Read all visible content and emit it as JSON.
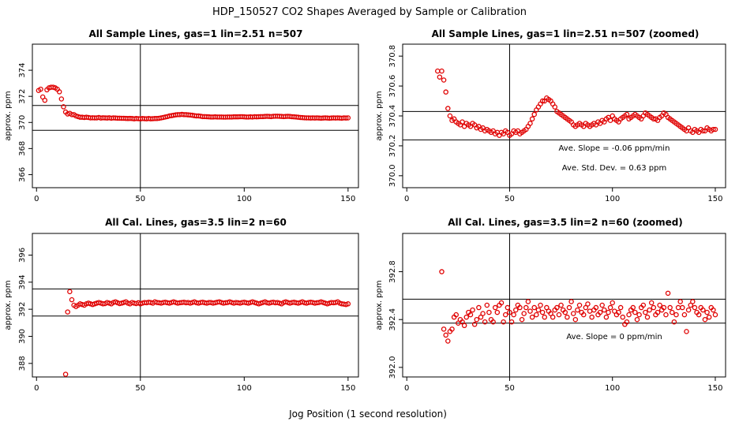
{
  "figure": {
    "title": "HDP_150527  CO2 Shapes Averaged by Sample or Calibration",
    "xlabel": "Jog Position (1 second resolution)"
  },
  "chart_data": [
    {
      "type": "scatter",
      "title": "All Sample Lines, gas=1 lin=2.51 n=507",
      "ylabel": "approx. ppm",
      "xlim": [
        -2,
        155
      ],
      "ylim": [
        365,
        376
      ],
      "xticks": [
        "0",
        "50",
        "100",
        "150"
      ],
      "yticks": [
        "366",
        "368",
        "370",
        "372",
        "374"
      ],
      "hlines": [
        371.3,
        369.4
      ],
      "vline": 50,
      "annotations": [],
      "x": [
        1,
        2,
        3,
        4,
        5,
        6,
        7,
        8,
        9,
        10,
        11,
        12,
        13,
        14,
        15,
        16,
        17,
        18,
        19,
        20,
        21,
        22,
        23,
        24,
        25,
        26,
        27,
        28,
        29,
        30,
        31,
        32,
        33,
        34,
        35,
        36,
        37,
        38,
        39,
        40,
        41,
        42,
        43,
        44,
        45,
        46,
        47,
        48,
        49,
        50,
        51,
        52,
        53,
        54,
        55,
        56,
        57,
        58,
        59,
        60,
        61,
        62,
        63,
        64,
        65,
        66,
        67,
        68,
        69,
        70,
        71,
        72,
        73,
        74,
        75,
        76,
        77,
        78,
        79,
        80,
        81,
        82,
        83,
        84,
        85,
        86,
        87,
        88,
        89,
        90,
        91,
        92,
        93,
        94,
        95,
        96,
        97,
        98,
        99,
        100,
        101,
        102,
        103,
        104,
        105,
        106,
        107,
        108,
        109,
        110,
        111,
        112,
        113,
        114,
        115,
        116,
        117,
        118,
        119,
        120,
        121,
        122,
        123,
        124,
        125,
        126,
        127,
        128,
        129,
        130,
        131,
        132,
        133,
        134,
        135,
        136,
        137,
        138,
        139,
        140,
        141,
        142,
        143,
        144,
        145,
        146,
        147,
        148,
        149,
        150
      ],
      "y": [
        372.45,
        372.55,
        371.95,
        371.7,
        372.5,
        372.65,
        372.7,
        372.7,
        372.65,
        372.55,
        372.35,
        371.8,
        371.2,
        370.8,
        370.65,
        370.7,
        370.6,
        370.6,
        370.5,
        370.45,
        370.4,
        370.4,
        370.38,
        370.4,
        370.38,
        370.35,
        370.36,
        370.35,
        370.35,
        370.38,
        370.34,
        370.36,
        370.35,
        370.34,
        370.36,
        370.33,
        370.35,
        370.34,
        370.33,
        370.33,
        370.32,
        370.32,
        370.31,
        370.3,
        370.31,
        370.3,
        370.28,
        370.3,
        370.29,
        370.28,
        370.3,
        370.29,
        370.28,
        370.3,
        370.28,
        370.29,
        370.3,
        370.3,
        370.32,
        370.35,
        370.38,
        370.42,
        370.45,
        370.5,
        370.52,
        370.55,
        370.58,
        370.6,
        370.6,
        370.62,
        370.6,
        370.6,
        370.58,
        370.57,
        370.55,
        370.52,
        370.5,
        370.5,
        370.48,
        370.45,
        370.45,
        370.44,
        370.43,
        370.42,
        370.42,
        370.43,
        370.42,
        370.42,
        370.42,
        370.41,
        370.41,
        370.42,
        370.42,
        370.42,
        370.43,
        370.43,
        370.43,
        370.44,
        370.44,
        370.43,
        370.42,
        370.42,
        370.43,
        370.42,
        370.44,
        370.43,
        370.44,
        370.45,
        370.45,
        370.46,
        370.47,
        370.46,
        370.45,
        370.47,
        370.48,
        370.48,
        370.47,
        370.46,
        370.45,
        370.46,
        370.47,
        370.46,
        370.44,
        370.43,
        370.42,
        370.4,
        370.38,
        370.37,
        370.36,
        370.35,
        370.35,
        370.34,
        370.35,
        370.34,
        370.35,
        370.34,
        370.33,
        370.34,
        370.35,
        370.34,
        370.33,
        370.34,
        370.35,
        370.34,
        370.35,
        370.34,
        370.33,
        370.35,
        370.34,
        370.35
      ]
    },
    {
      "type": "scatter",
      "title": "All Sample Lines, gas=1 lin=2.51 n=507 (zoomed)",
      "ylabel": "approx. ppm",
      "xlim": [
        -2,
        155
      ],
      "ylim": [
        369.92,
        370.88
      ],
      "xticks": [
        "0",
        "50",
        "100",
        "150"
      ],
      "yticks": [
        "370.0",
        "370.2",
        "370.4",
        "370.6",
        "370.8"
      ],
      "hlines": [
        370.43,
        370.24
      ],
      "vline": 50,
      "annotations": [
        "Ave. Slope =  -0.06  ppm/min",
        "Ave. Std. Dev. =  0.63  ppm"
      ],
      "x": [
        15,
        16,
        17,
        18,
        19,
        20,
        21,
        22,
        23,
        24,
        25,
        26,
        27,
        28,
        29,
        30,
        31,
        32,
        33,
        34,
        35,
        36,
        37,
        38,
        39,
        40,
        41,
        42,
        43,
        44,
        45,
        46,
        47,
        48,
        49,
        50,
        51,
        52,
        53,
        54,
        55,
        56,
        57,
        58,
        59,
        60,
        61,
        62,
        63,
        64,
        65,
        66,
        67,
        68,
        69,
        70,
        71,
        72,
        73,
        74,
        75,
        76,
        77,
        78,
        79,
        80,
        81,
        82,
        83,
        84,
        85,
        86,
        87,
        88,
        89,
        90,
        91,
        92,
        93,
        94,
        95,
        96,
        97,
        98,
        99,
        100,
        101,
        102,
        103,
        104,
        105,
        106,
        107,
        108,
        109,
        110,
        111,
        112,
        113,
        114,
        115,
        116,
        117,
        118,
        119,
        120,
        121,
        122,
        123,
        124,
        125,
        126,
        127,
        128,
        129,
        130,
        131,
        132,
        133,
        134,
        135,
        136,
        137,
        138,
        139,
        140,
        141,
        142,
        143,
        144,
        145,
        146,
        147,
        148,
        149,
        150
      ],
      "y": [
        370.7,
        370.66,
        370.7,
        370.64,
        370.56,
        370.45,
        370.4,
        370.37,
        370.38,
        370.36,
        370.35,
        370.34,
        370.36,
        370.33,
        370.35,
        370.34,
        370.33,
        370.35,
        370.34,
        370.32,
        370.33,
        370.31,
        370.32,
        370.3,
        370.31,
        370.3,
        370.29,
        370.3,
        370.28,
        370.29,
        370.27,
        370.29,
        370.28,
        370.3,
        370.29,
        370.27,
        370.28,
        370.3,
        370.29,
        370.3,
        370.28,
        370.29,
        370.3,
        370.31,
        370.33,
        370.35,
        370.38,
        370.41,
        370.44,
        370.46,
        370.48,
        370.5,
        370.5,
        370.52,
        370.51,
        370.5,
        370.48,
        370.46,
        370.43,
        370.42,
        370.41,
        370.4,
        370.39,
        370.38,
        370.37,
        370.36,
        370.34,
        370.33,
        370.34,
        370.35,
        370.34,
        370.33,
        370.35,
        370.34,
        370.33,
        370.34,
        370.35,
        370.34,
        370.36,
        370.35,
        370.37,
        370.36,
        370.38,
        370.39,
        370.37,
        370.4,
        370.38,
        370.37,
        370.36,
        370.38,
        370.39,
        370.4,
        370.41,
        370.38,
        370.39,
        370.4,
        370.41,
        370.4,
        370.39,
        370.38,
        370.4,
        370.42,
        370.41,
        370.4,
        370.39,
        370.38,
        370.38,
        370.37,
        370.39,
        370.4,
        370.42,
        370.41,
        370.39,
        370.38,
        370.37,
        370.36,
        370.35,
        370.34,
        370.33,
        370.32,
        370.31,
        370.3,
        370.32,
        370.3,
        370.29,
        370.31,
        370.3,
        370.29,
        370.31,
        370.3,
        370.3,
        370.32,
        370.31,
        370.3,
        370.31,
        370.31
      ]
    },
    {
      "type": "scatter",
      "title": "All Cal. Lines, gas=3.5 lin=2 n=60",
      "ylabel": "approx. ppm",
      "xlim": [
        -2,
        155
      ],
      "ylim": [
        387,
        397.6
      ],
      "xticks": [
        "0",
        "50",
        "100",
        "150"
      ],
      "yticks": [
        "388",
        "390",
        "392",
        "394",
        "396"
      ],
      "hlines": [
        393.5,
        391.5
      ],
      "vline": 50,
      "annotations": [],
      "x": [
        14,
        15,
        16,
        17,
        18,
        19,
        20,
        21,
        22,
        23,
        24,
        25,
        26,
        27,
        28,
        29,
        30,
        31,
        32,
        33,
        34,
        35,
        36,
        37,
        38,
        39,
        40,
        41,
        42,
        43,
        44,
        45,
        46,
        47,
        48,
        49,
        50,
        51,
        52,
        53,
        54,
        55,
        56,
        57,
        58,
        59,
        60,
        61,
        62,
        63,
        64,
        65,
        66,
        67,
        68,
        69,
        70,
        71,
        72,
        73,
        74,
        75,
        76,
        77,
        78,
        79,
        80,
        81,
        82,
        83,
        84,
        85,
        86,
        87,
        88,
        89,
        90,
        91,
        92,
        93,
        94,
        95,
        96,
        97,
        98,
        99,
        100,
        101,
        102,
        103,
        104,
        105,
        106,
        107,
        108,
        109,
        110,
        111,
        112,
        113,
        114,
        115,
        116,
        117,
        118,
        119,
        120,
        121,
        122,
        123,
        124,
        125,
        126,
        127,
        128,
        129,
        130,
        131,
        132,
        133,
        134,
        135,
        136,
        137,
        138,
        139,
        140,
        141,
        142,
        143,
        144,
        145,
        146,
        147,
        148,
        149,
        150
      ],
      "y": [
        387.2,
        391.8,
        393.3,
        392.7,
        392.3,
        392.2,
        392.3,
        392.4,
        392.35,
        392.3,
        392.4,
        392.45,
        392.4,
        392.35,
        392.4,
        392.45,
        392.5,
        392.45,
        392.4,
        392.42,
        392.5,
        392.45,
        392.4,
        392.5,
        392.55,
        392.48,
        392.42,
        392.45,
        392.5,
        392.55,
        392.45,
        392.4,
        392.5,
        392.45,
        392.42,
        392.48,
        392.4,
        392.45,
        392.5,
        392.48,
        392.52,
        392.5,
        392.45,
        392.55,
        392.5,
        392.48,
        392.45,
        392.5,
        392.52,
        392.48,
        392.45,
        392.5,
        392.55,
        392.5,
        392.45,
        392.48,
        392.5,
        392.52,
        392.48,
        392.5,
        392.45,
        392.5,
        392.55,
        392.48,
        392.45,
        392.5,
        392.52,
        392.48,
        392.45,
        392.5,
        392.5,
        392.45,
        392.48,
        392.52,
        392.55,
        392.5,
        392.45,
        392.48,
        392.5,
        392.55,
        392.5,
        392.45,
        392.5,
        392.48,
        392.45,
        392.5,
        392.52,
        392.48,
        392.45,
        392.5,
        392.55,
        392.5,
        392.45,
        392.4,
        392.45,
        392.5,
        392.55,
        392.48,
        392.45,
        392.5,
        392.52,
        392.48,
        392.5,
        392.45,
        392.4,
        392.5,
        392.55,
        392.5,
        392.45,
        392.5,
        392.52,
        392.48,
        392.45,
        392.5,
        392.55,
        392.48,
        392.45,
        392.5,
        392.52,
        392.5,
        392.45,
        392.48,
        392.5,
        392.55,
        392.5,
        392.45,
        392.4,
        392.45,
        392.5,
        392.48,
        392.5,
        392.55,
        392.45,
        392.4,
        392.38,
        392.35,
        392.4
      ]
    },
    {
      "type": "scatter",
      "title": "All Cal. Lines, gas=3.5 lin=2 n=60 (zoomed)",
      "ylabel": "approx. ppm",
      "xlim": [
        -2,
        155
      ],
      "ylim": [
        391.92,
        393.12
      ],
      "xticks": [
        "0",
        "50",
        "100",
        "150"
      ],
      "yticks": [
        "392.0",
        "392.4",
        "392.8"
      ],
      "hlines": [
        392.57,
        392.37
      ],
      "vline": 50,
      "annotations": [
        "Ave. Slope =  0  ppm/min"
      ],
      "x": [
        17,
        18,
        19,
        20,
        21,
        22,
        23,
        24,
        25,
        26,
        27,
        28,
        29,
        30,
        31,
        32,
        33,
        34,
        35,
        36,
        37,
        38,
        39,
        40,
        41,
        42,
        43,
        44,
        45,
        46,
        47,
        48,
        49,
        50,
        51,
        52,
        53,
        54,
        55,
        56,
        57,
        58,
        59,
        60,
        61,
        62,
        63,
        64,
        65,
        66,
        67,
        68,
        69,
        70,
        71,
        72,
        73,
        74,
        75,
        76,
        77,
        78,
        79,
        80,
        81,
        82,
        83,
        84,
        85,
        86,
        87,
        88,
        89,
        90,
        91,
        92,
        93,
        94,
        95,
        96,
        97,
        98,
        99,
        100,
        101,
        102,
        103,
        104,
        105,
        106,
        107,
        108,
        109,
        110,
        111,
        112,
        113,
        114,
        115,
        116,
        117,
        118,
        119,
        120,
        121,
        122,
        123,
        124,
        125,
        126,
        127,
        128,
        129,
        130,
        131,
        132,
        133,
        134,
        135,
        136,
        137,
        138,
        139,
        140,
        141,
        142,
        143,
        144,
        145,
        146,
        147,
        148,
        149,
        150
      ],
      "y": [
        392.8,
        392.32,
        392.27,
        392.22,
        392.3,
        392.32,
        392.42,
        392.44,
        392.37,
        392.4,
        392.38,
        392.35,
        392.42,
        392.46,
        392.44,
        392.48,
        392.36,
        392.4,
        392.5,
        392.42,
        392.45,
        392.38,
        392.52,
        392.46,
        392.4,
        392.38,
        392.5,
        392.46,
        392.52,
        392.54,
        392.38,
        392.44,
        392.5,
        392.46,
        392.38,
        392.44,
        392.48,
        392.52,
        392.5,
        392.4,
        392.45,
        392.5,
        392.55,
        392.47,
        392.42,
        392.5,
        392.44,
        392.48,
        392.52,
        392.46,
        392.42,
        392.5,
        392.47,
        392.45,
        392.42,
        392.48,
        392.5,
        392.44,
        392.52,
        392.48,
        392.46,
        392.42,
        392.5,
        392.55,
        392.45,
        392.4,
        392.48,
        392.52,
        392.46,
        392.44,
        392.5,
        392.53,
        392.47,
        392.42,
        392.48,
        392.5,
        392.44,
        392.46,
        392.52,
        392.48,
        392.42,
        392.46,
        392.5,
        392.54,
        392.47,
        392.44,
        392.46,
        392.5,
        392.42,
        392.36,
        392.38,
        392.44,
        392.48,
        392.5,
        392.46,
        392.4,
        392.44,
        392.5,
        392.52,
        392.46,
        392.42,
        392.48,
        392.54,
        392.5,
        392.44,
        392.46,
        392.52,
        392.48,
        392.5,
        392.44,
        392.62,
        392.5,
        392.46,
        392.38,
        392.44,
        392.5,
        392.55,
        392.5,
        392.44,
        392.3,
        392.48,
        392.52,
        392.55,
        392.5,
        392.46,
        392.44,
        392.5,
        392.48,
        392.4,
        392.46,
        392.42,
        392.5,
        392.48,
        392.44
      ]
    }
  ]
}
